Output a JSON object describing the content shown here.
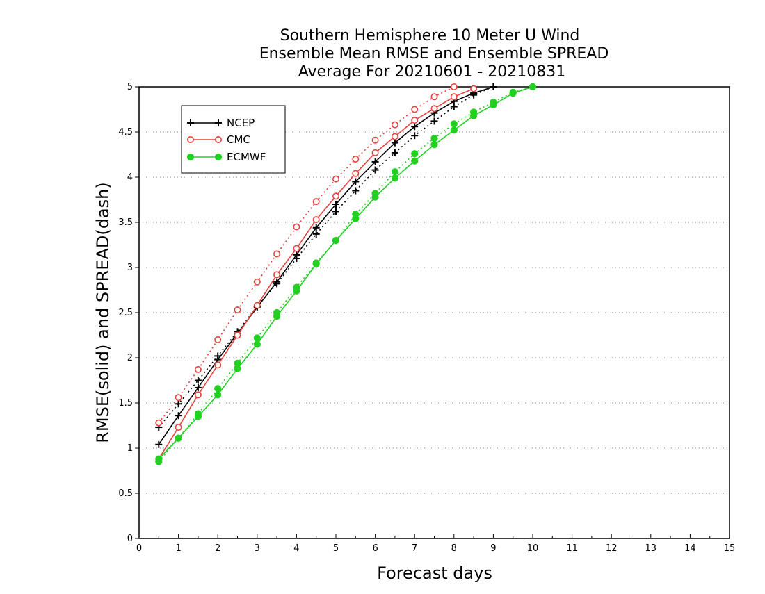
{
  "chart_data": {
    "type": "line",
    "title_lines": [
      "Southern Hemisphere 10 Meter U Wind",
      "Ensemble Mean RMSE and Ensemble SPREAD",
      "Average For 20210601 - 20210831"
    ],
    "xlabel": "Forecast days",
    "ylabel": "RMSE(solid) and SPREAD(dash)",
    "xlim": [
      0,
      15
    ],
    "ylim": [
      0,
      5
    ],
    "x_ticks": [
      "0",
      "1",
      "2",
      "3",
      "4",
      "5",
      "6",
      "7",
      "8",
      "9",
      "10",
      "11",
      "12",
      "13",
      "14",
      "15"
    ],
    "y_ticks": [
      "0",
      "0.5",
      "1",
      "1.5",
      "2",
      "2.5",
      "3",
      "3.5",
      "4",
      "4.5",
      "5"
    ],
    "grid": "horizontal dotted",
    "legend_position": "top-left",
    "series": [
      {
        "name": "NCEP",
        "color": "#000000",
        "marker": "plus",
        "rmse": {
          "x": [
            0.5,
            1,
            1.5,
            2,
            2.5,
            3,
            3.5,
            4,
            4.5,
            5,
            5.5,
            6,
            6.5,
            7,
            7.5,
            8,
            8.5,
            9
          ],
          "y": [
            1.04,
            1.36,
            1.67,
            1.98,
            2.27,
            2.56,
            2.84,
            3.14,
            3.44,
            3.7,
            3.95,
            4.17,
            4.38,
            4.56,
            4.71,
            4.84,
            4.93,
            5.0
          ]
        },
        "spread": {
          "x": [
            0.5,
            1,
            1.5,
            2,
            2.5,
            3,
            3.5,
            4,
            4.5,
            5,
            5.5,
            6,
            6.5,
            7,
            7.5,
            8,
            8.5,
            9
          ],
          "y": [
            1.23,
            1.49,
            1.75,
            2.02,
            2.29,
            2.57,
            2.82,
            3.1,
            3.37,
            3.62,
            3.85,
            4.08,
            4.27,
            4.46,
            4.62,
            4.78,
            4.91,
            5.0
          ]
        }
      },
      {
        "name": "CMC",
        "color": "#e8413c",
        "marker": "open-circle",
        "rmse": {
          "x": [
            0.5,
            1,
            1.5,
            2,
            2.5,
            3,
            3.5,
            4,
            4.5,
            5,
            5.5,
            6,
            6.5,
            7,
            7.5,
            8,
            8.5
          ],
          "y": [
            0.88,
            1.23,
            1.59,
            1.92,
            2.25,
            2.58,
            2.92,
            3.21,
            3.53,
            3.79,
            4.04,
            4.27,
            4.45,
            4.63,
            4.76,
            4.89,
            4.98
          ]
        },
        "spread": {
          "x": [
            0.5,
            1,
            1.5,
            2,
            2.5,
            3,
            3.5,
            4,
            4.5,
            5,
            5.5,
            6,
            6.5,
            7,
            7.5,
            8
          ],
          "y": [
            1.28,
            1.56,
            1.87,
            2.2,
            2.53,
            2.84,
            3.15,
            3.45,
            3.73,
            3.98,
            4.2,
            4.41,
            4.58,
            4.75,
            4.89,
            5.0
          ]
        }
      },
      {
        "name": "ECMWF",
        "color": "#22d022",
        "marker": "filled-circle",
        "rmse": {
          "x": [
            0.5,
            1,
            1.5,
            2,
            2.5,
            3,
            3.5,
            4,
            4.5,
            5,
            5.5,
            6,
            6.5,
            7,
            7.5,
            8,
            8.5,
            9,
            9.5,
            10
          ],
          "y": [
            0.88,
            1.11,
            1.35,
            1.59,
            1.88,
            2.15,
            2.46,
            2.74,
            3.04,
            3.3,
            3.54,
            3.78,
            3.99,
            4.18,
            4.36,
            4.52,
            4.68,
            4.8,
            4.93,
            5.0
          ]
        },
        "spread": {
          "x": [
            0.5,
            1,
            1.5,
            2,
            2.5,
            3,
            3.5,
            4,
            4.5,
            5,
            5.5,
            6,
            6.5,
            7,
            7.5,
            8,
            8.5,
            9,
            9.5,
            10
          ],
          "y": [
            0.85,
            1.11,
            1.38,
            1.66,
            1.94,
            2.22,
            2.5,
            2.78,
            3.05,
            3.3,
            3.59,
            3.82,
            4.06,
            4.26,
            4.43,
            4.59,
            4.72,
            4.83,
            4.94,
            5.0
          ]
        }
      }
    ]
  }
}
